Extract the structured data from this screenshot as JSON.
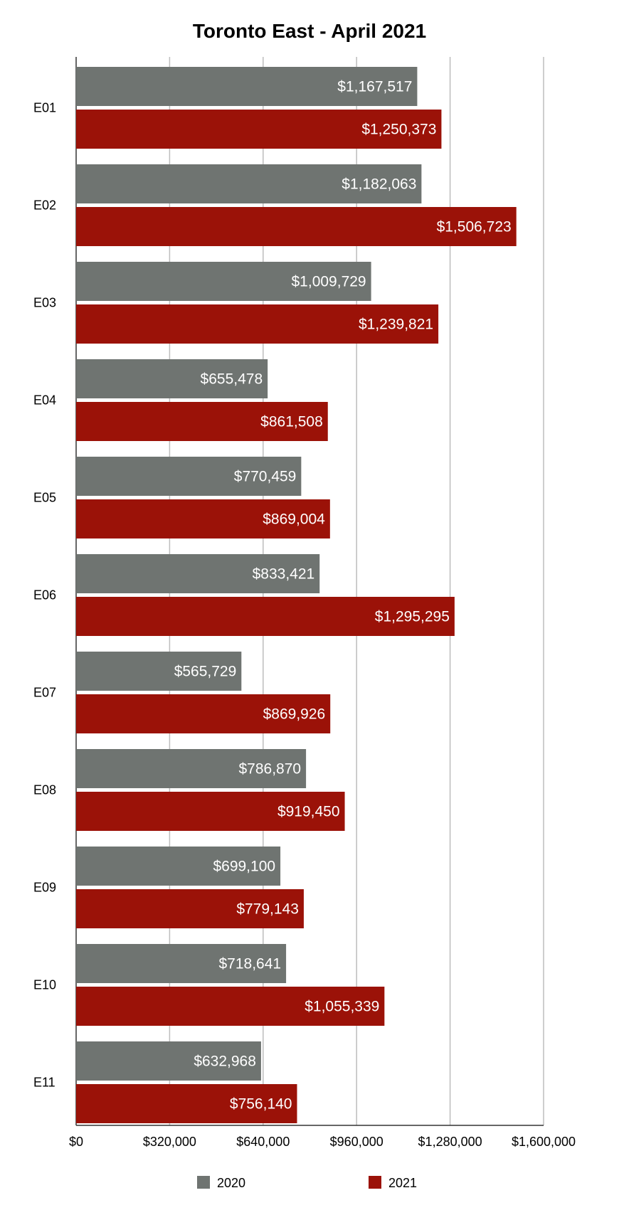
{
  "chart_data": {
    "type": "bar",
    "orientation": "horizontal",
    "title": "Toronto East - April 2021",
    "xlabel": "",
    "ylabel": "",
    "categories": [
      "E01",
      "E02",
      "E03",
      "E04",
      "E05",
      "E06",
      "E07",
      "E08",
      "E09",
      "E10",
      "E11"
    ],
    "series": [
      {
        "name": "2020",
        "color": "#6f7471",
        "values": [
          1167517,
          1182063,
          1009729,
          655478,
          770459,
          833421,
          565729,
          786870,
          699100,
          718641,
          632968
        ],
        "labels": [
          "$1,167,517",
          "$1,182,063",
          "$1,009,729",
          "$655,478",
          "$770,459",
          "$833,421",
          "$565,729",
          "$786,870",
          "$699,100",
          "$718,641",
          "$632,968"
        ]
      },
      {
        "name": "2021",
        "color": "#9b1208",
        "values": [
          1250373,
          1506723,
          1239821,
          861508,
          869004,
          1295295,
          869926,
          919450,
          779143,
          1055339,
          756140
        ],
        "labels": [
          "$1,250,373",
          "$1,506,723",
          "$1,239,821",
          "$861,508",
          "$869,004",
          "$1,295,295",
          "$869,926",
          "$919,450",
          "$779,143",
          "$1,055,339",
          "$756,140"
        ]
      }
    ],
    "xlim": [
      0,
      1600000
    ],
    "xticks": [
      0,
      320000,
      640000,
      960000,
      1280000,
      1600000
    ],
    "xtick_labels": [
      "$0",
      "$320,000",
      "$640,000",
      "$960,000",
      "$1,280,000",
      "$1,600,000"
    ],
    "grid": true,
    "legend_position": "bottom"
  }
}
